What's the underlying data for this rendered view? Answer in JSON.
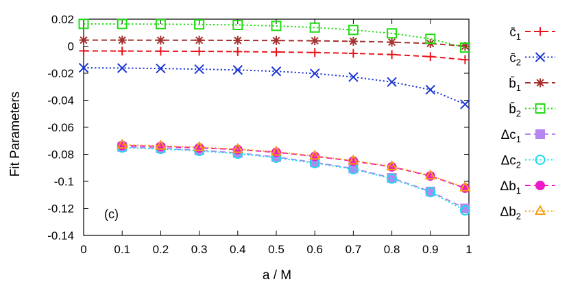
{
  "chart_data": {
    "type": "line",
    "xlabel": "a / M",
    "ylabel": "Fit Parameters",
    "annotation": "(c)",
    "xlim": [
      0,
      1
    ],
    "ylim": [
      -0.14,
      0.02
    ],
    "x_ticks": [
      "0",
      "0.1",
      "0.2",
      "0.3",
      "0.4",
      "0.5",
      "0.6",
      "0.7",
      "0.8",
      "0.9",
      "1"
    ],
    "y_ticks": [
      "0.02",
      "0",
      "-0.02",
      "-0.04",
      "-0.06",
      "-0.08",
      "-0.1",
      "-0.12",
      "-0.14"
    ],
    "legend_position": "right",
    "grid": false,
    "series": [
      {
        "name": "c̄1",
        "label_main": "c̄",
        "label_sub": "1",
        "color": "#e8141b",
        "marker": "plus",
        "dash": "dashed",
        "x": [
          0,
          0.1,
          0.2,
          0.3,
          0.4,
          0.5,
          0.6,
          0.7,
          0.8,
          0.9,
          0.99
        ],
        "y": [
          -0.0035,
          -0.0036,
          -0.0037,
          -0.0038,
          -0.004,
          -0.0043,
          -0.0047,
          -0.0053,
          -0.0062,
          -0.0077,
          -0.01
        ]
      },
      {
        "name": "c̄2",
        "label_main": "c̄",
        "label_sub": "2",
        "color": "#1b35d4",
        "marker": "cross",
        "dash": "dotted",
        "x": [
          0,
          0.1,
          0.2,
          0.3,
          0.4,
          0.5,
          0.6,
          0.7,
          0.8,
          0.9,
          0.99
        ],
        "y": [
          -0.016,
          -0.0162,
          -0.0165,
          -0.017,
          -0.0176,
          -0.0186,
          -0.0202,
          -0.0228,
          -0.0265,
          -0.0322,
          -0.043
        ]
      },
      {
        "name": "b̄1",
        "label_main": "b̄",
        "label_sub": "1",
        "color": "#a4302f",
        "marker": "star",
        "dash": "dashed",
        "x": [
          0,
          0.1,
          0.2,
          0.3,
          0.4,
          0.5,
          0.6,
          0.7,
          0.8,
          0.9,
          0.99
        ],
        "y": [
          0.0045,
          0.0045,
          0.0044,
          0.0044,
          0.0043,
          0.0042,
          0.004,
          0.0036,
          0.003,
          0.002,
          0.0
        ]
      },
      {
        "name": "b̄2",
        "label_main": "b̄",
        "label_sub": "2",
        "color": "#1fdc10",
        "marker": "square",
        "dash": "dotted",
        "x": [
          0,
          0.1,
          0.2,
          0.3,
          0.4,
          0.5,
          0.6,
          0.7,
          0.8,
          0.9,
          0.99
        ],
        "y": [
          0.0165,
          0.0164,
          0.0163,
          0.0161,
          0.0157,
          0.015,
          0.0138,
          0.012,
          0.0095,
          0.0055,
          -0.001
        ]
      },
      {
        "name": "Δc1",
        "label_main": "Δc",
        "label_sub": "1",
        "color": "#b486f0",
        "marker": "filled-square",
        "dash": "dashed",
        "x": [
          0.1,
          0.2,
          0.3,
          0.4,
          0.5,
          0.6,
          0.7,
          0.8,
          0.9,
          0.99
        ],
        "y": [
          -0.0745,
          -0.0755,
          -0.077,
          -0.079,
          -0.082,
          -0.086,
          -0.0905,
          -0.0975,
          -0.1075,
          -0.12
        ]
      },
      {
        "name": "Δc2",
        "label_main": "Δc",
        "label_sub": "2",
        "color": "#19dcec",
        "marker": "circle",
        "dash": "dotted",
        "x": [
          0.1,
          0.2,
          0.3,
          0.4,
          0.5,
          0.6,
          0.7,
          0.8,
          0.9,
          0.99
        ],
        "y": [
          -0.075,
          -0.076,
          -0.0775,
          -0.0795,
          -0.0825,
          -0.0865,
          -0.091,
          -0.098,
          -0.108,
          -0.1215
        ]
      },
      {
        "name": "Δb1",
        "label_main": "Δb",
        "label_sub": "1",
        "color": "#ee19c6",
        "marker": "filled-circle",
        "dash": "dashed",
        "x": [
          0.1,
          0.2,
          0.3,
          0.4,
          0.5,
          0.6,
          0.7,
          0.8,
          0.9,
          0.99
        ],
        "y": [
          -0.0735,
          -0.0742,
          -0.0752,
          -0.0765,
          -0.0785,
          -0.0815,
          -0.085,
          -0.0893,
          -0.096,
          -0.105
        ]
      },
      {
        "name": "Δb2",
        "label_main": "Δb",
        "label_sub": "2",
        "color": "#f5a012",
        "marker": "triangle",
        "dash": "dotted",
        "x": [
          0.1,
          0.2,
          0.3,
          0.4,
          0.5,
          0.6,
          0.7,
          0.8,
          0.9,
          0.99
        ],
        "y": [
          -0.073,
          -0.0738,
          -0.0748,
          -0.0762,
          -0.0782,
          -0.0812,
          -0.0847,
          -0.089,
          -0.0958,
          -0.1045
        ]
      }
    ]
  }
}
